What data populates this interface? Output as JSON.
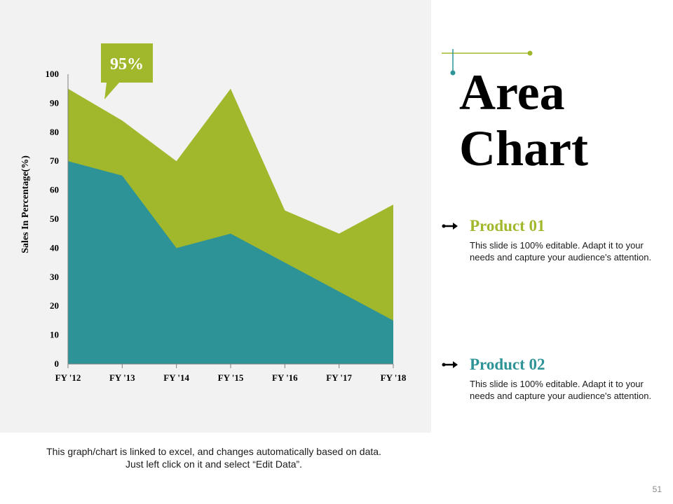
{
  "title_line1": "Area",
  "title_line2": "Chart",
  "products": [
    {
      "name": "Product 01",
      "description": "This slide is 100% editable. Adapt it to your needs and capture your audience's attention."
    },
    {
      "name": "Product 02",
      "description": "This slide is 100% editable. Adapt it to your needs and capture your audience's attention."
    }
  ],
  "footnote": "This graph/chart is linked to excel, and changes automatically based on data. Just left click on it and select “Edit Data”.",
  "page_number": "51",
  "colors": {
    "panel": "#f2f2f2",
    "product01": "#a2b82c",
    "product02": "#2e9396",
    "callout": "#a2b82c"
  },
  "chart_data": {
    "type": "area",
    "stacked": false,
    "categories": [
      "FY '12",
      "FY '13",
      "FY '14",
      "FY '15",
      "FY '16",
      "FY '17",
      "FY '18"
    ],
    "series": [
      {
        "name": "Product 01",
        "values": [
          95,
          84,
          70,
          95,
          53,
          45,
          55
        ]
      },
      {
        "name": "Product 02",
        "values": [
          70,
          65,
          40,
          45,
          35,
          25,
          15
        ]
      }
    ],
    "ylim": [
      0,
      100
    ],
    "yticks": [
      0,
      10,
      20,
      30,
      40,
      50,
      60,
      70,
      80,
      90,
      100
    ],
    "ylabel": "Sales In Percentage(%)",
    "xlabel": "",
    "grid": false,
    "callout": "95%"
  }
}
